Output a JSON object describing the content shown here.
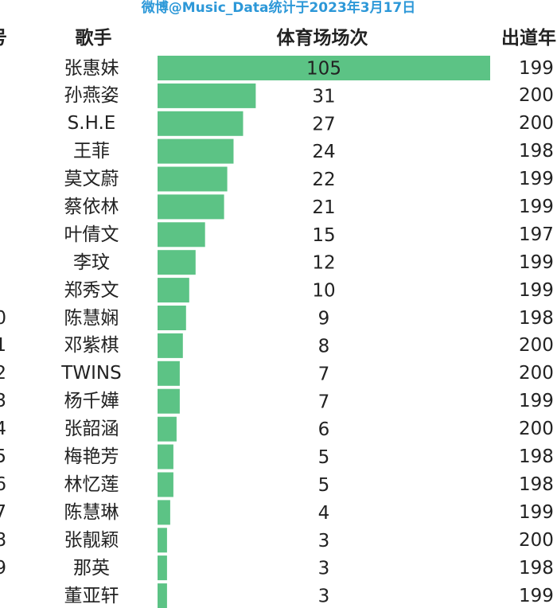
{
  "source_note": "微博@Music_Data统计于2023年3月17日",
  "headers": {
    "rank": "号",
    "singer": "歌手",
    "count": "体育场场次",
    "year": "出道年"
  },
  "bar_color": "#5cc385",
  "chart_data": {
    "type": "bar",
    "orientation": "horizontal",
    "title": "",
    "categories": [
      "张惠妹",
      "孙燕姿",
      "S.H.E",
      "王菲",
      "莫文蔚",
      "蔡依林",
      "叶倩文",
      "李玟",
      "郑秀文",
      "陈慧娴",
      "邓紫棋",
      "TWINS",
      "杨千嬅",
      "张韶涵",
      "梅艳芳",
      "林忆莲",
      "陈慧琳",
      "张靓颖",
      "那英",
      "董亚轩"
    ],
    "values": [
      105,
      31,
      27,
      24,
      22,
      21,
      15,
      12,
      10,
      9,
      8,
      7,
      7,
      6,
      5,
      5,
      4,
      3,
      3,
      3
    ],
    "ranks": [
      "",
      "",
      "",
      "",
      "",
      "",
      "",
      "",
      "",
      "0",
      "1",
      "2",
      "3",
      "4",
      "5",
      "6",
      "7",
      "8",
      "9",
      ""
    ],
    "years": [
      "199",
      "200",
      "200",
      "198",
      "199",
      "199",
      "197",
      "199",
      "199",
      "198",
      "200",
      "200",
      "199",
      "200",
      "198",
      "198",
      "199",
      "200",
      "198",
      "199"
    ],
    "xlabel": "",
    "ylabel": "",
    "grid": false,
    "legend": "none"
  }
}
